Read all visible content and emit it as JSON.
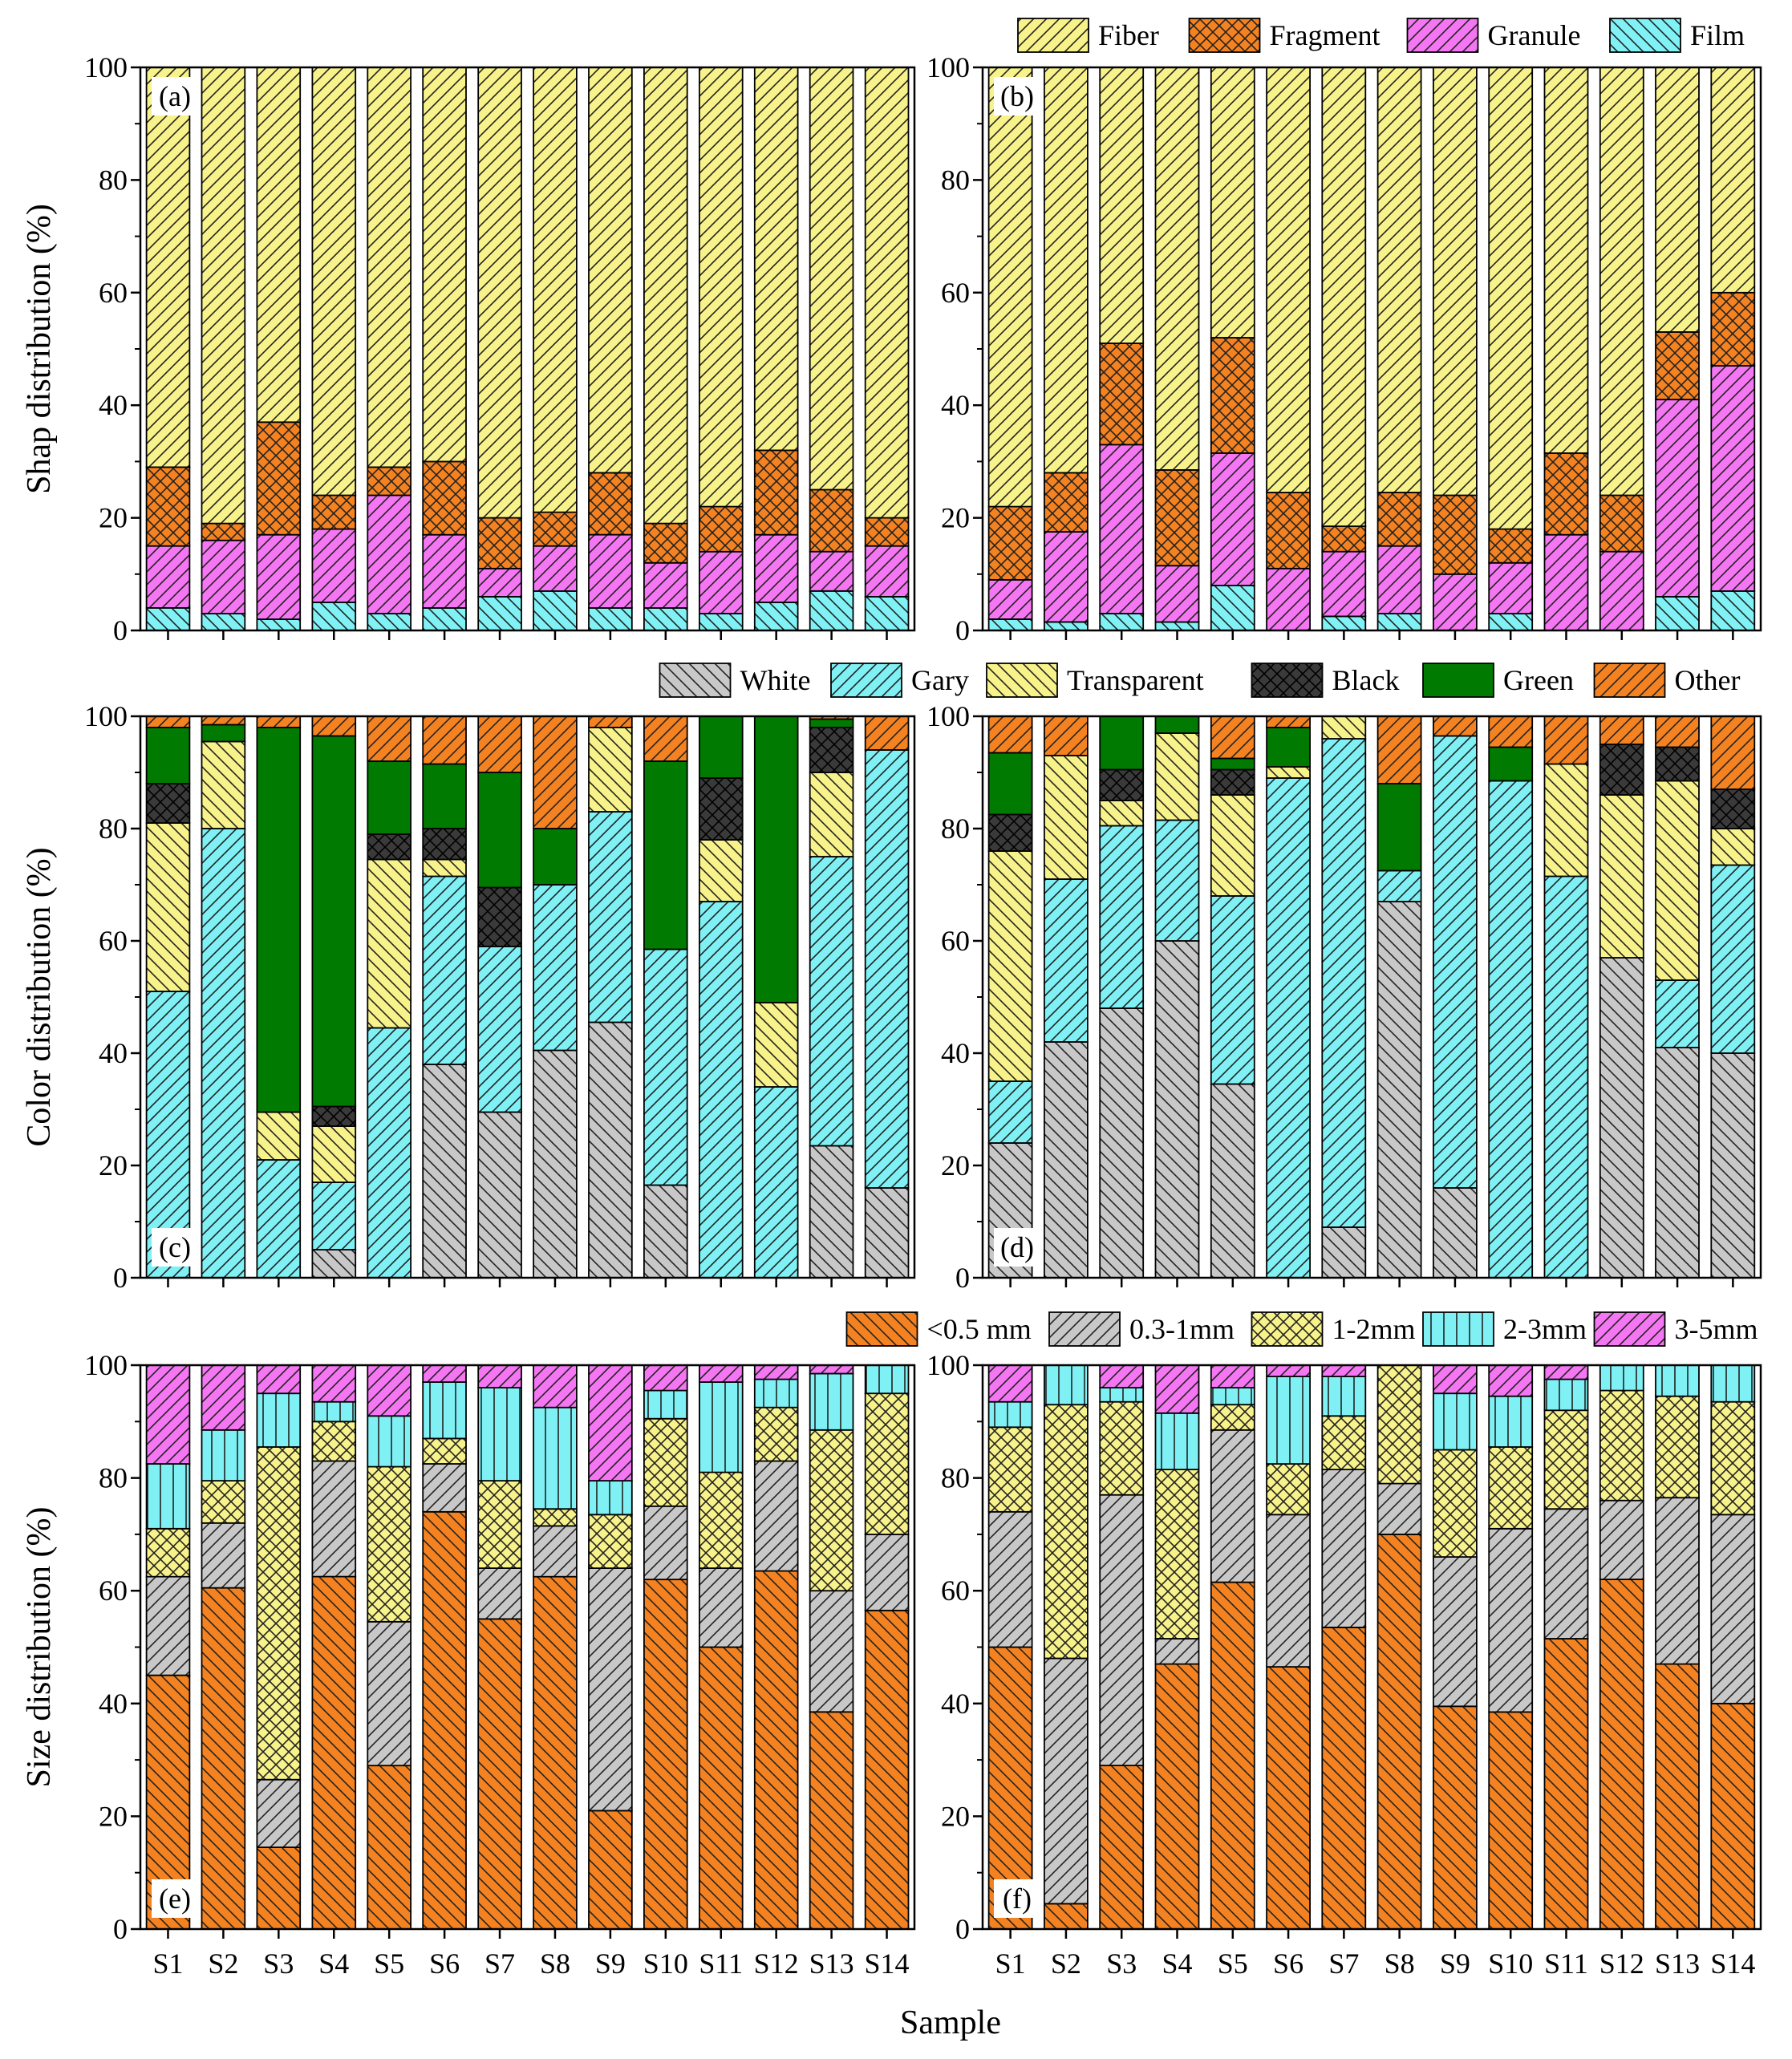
{
  "chart_data": [
    {
      "type": "bar",
      "panel": "(a)",
      "stacked": true,
      "ylabel": "Shap distribution (%)",
      "xlabel": "",
      "ylim": [
        0,
        100
      ],
      "yticks": [
        0,
        20,
        40,
        60,
        80,
        100
      ],
      "categories": [
        "S1",
        "S2",
        "S3",
        "S4",
        "S5",
        "S6",
        "S7",
        "S8",
        "S9",
        "S10",
        "S11",
        "S12",
        "S13",
        "S14"
      ],
      "series": [
        {
          "name": "Film",
          "key": "film",
          "values": [
            4,
            3,
            2,
            5,
            3,
            4,
            6,
            7,
            4,
            4,
            3,
            5,
            7,
            6
          ]
        },
        {
          "name": "Granule",
          "key": "granule",
          "values": [
            11,
            13,
            15,
            13,
            21,
            13,
            5,
            8,
            13,
            8,
            11,
            12,
            7,
            9
          ]
        },
        {
          "name": "Fragment",
          "key": "fragment",
          "values": [
            14,
            3,
            20,
            6,
            5,
            13,
            9,
            6,
            11,
            7,
            8,
            15,
            11,
            5
          ]
        },
        {
          "name": "Fiber",
          "key": "fiber",
          "values": [
            71,
            81,
            63,
            76,
            71,
            70,
            80,
            79,
            72,
            81,
            78,
            68,
            75,
            80
          ]
        }
      ]
    },
    {
      "type": "bar",
      "panel": "(b)",
      "stacked": true,
      "ylabel": "",
      "xlabel": "",
      "ylim": [
        0,
        100
      ],
      "yticks": [
        0,
        20,
        40,
        60,
        80,
        100
      ],
      "categories": [
        "S1",
        "S2",
        "S3",
        "S4",
        "S5",
        "S6",
        "S7",
        "S8",
        "S9",
        "S10",
        "S11",
        "S12",
        "S13",
        "S14"
      ],
      "series": [
        {
          "name": "Film",
          "key": "film",
          "values": [
            2,
            1.5,
            3,
            1.5,
            8,
            0,
            2.5,
            3,
            0,
            3,
            0,
            0,
            6,
            7
          ]
        },
        {
          "name": "Granule",
          "key": "granule",
          "values": [
            7,
            16,
            30,
            10,
            23.5,
            11,
            11.5,
            12,
            10,
            9,
            17,
            14,
            35,
            40
          ]
        },
        {
          "name": "Fragment",
          "key": "fragment",
          "values": [
            13,
            10.5,
            18,
            17,
            20.5,
            13.5,
            4.5,
            9.5,
            14,
            6,
            14.5,
            10,
            12,
            13
          ]
        },
        {
          "name": "Fiber",
          "key": "fiber",
          "values": [
            78,
            72,
            49,
            71.5,
            48,
            75.5,
            81.5,
            75.5,
            76,
            82,
            68.5,
            76,
            47,
            40
          ]
        }
      ]
    },
    {
      "type": "bar",
      "panel": "(c)",
      "stacked": true,
      "ylabel": "Color distribution (%)",
      "xlabel": "",
      "ylim": [
        0,
        100
      ],
      "yticks": [
        0,
        20,
        40,
        60,
        80,
        100
      ],
      "categories": [
        "S1",
        "S2",
        "S3",
        "S4",
        "S5",
        "S6",
        "S7",
        "S8",
        "S9",
        "S10",
        "S11",
        "S12",
        "S13",
        "S14"
      ],
      "series": [
        {
          "name": "White",
          "key": "white",
          "values": [
            0,
            0,
            0,
            5,
            0,
            38,
            29.5,
            40.5,
            45.5,
            16.5,
            0,
            0,
            23.5,
            16
          ]
        },
        {
          "name": "Gary",
          "key": "gary",
          "values": [
            51,
            80,
            21,
            12,
            44.5,
            33.5,
            29.5,
            29.5,
            37.5,
            42,
            67,
            34,
            51.5,
            78
          ]
        },
        {
          "name": "Transparent",
          "key": "transparent",
          "values": [
            30,
            15.5,
            8.5,
            10,
            30,
            3,
            0,
            0,
            15,
            0,
            11,
            15,
            15,
            0
          ]
        },
        {
          "name": "Black",
          "key": "black",
          "values": [
            7,
            0,
            0,
            3.5,
            4.5,
            5.5,
            10.5,
            0,
            0,
            0,
            11,
            0,
            8,
            0
          ]
        },
        {
          "name": "Green",
          "key": "green",
          "values": [
            10,
            3,
            68.5,
            66,
            13,
            11.5,
            20.5,
            10,
            0,
            33.5,
            11,
            51,
            1.5,
            0
          ]
        },
        {
          "name": "Other",
          "key": "other",
          "values": [
            2,
            1.5,
            2,
            3.5,
            8,
            8.5,
            10,
            20,
            2,
            8,
            0,
            0,
            0.5,
            6
          ]
        }
      ]
    },
    {
      "type": "bar",
      "panel": "(d)",
      "stacked": true,
      "ylabel": "",
      "xlabel": "",
      "ylim": [
        0,
        100
      ],
      "yticks": [
        0,
        20,
        40,
        60,
        80,
        100
      ],
      "categories": [
        "S1",
        "S2",
        "S3",
        "S4",
        "S5",
        "S6",
        "S7",
        "S8",
        "S9",
        "S10",
        "S11",
        "S12",
        "S13",
        "S14"
      ],
      "series": [
        {
          "name": "White",
          "key": "white",
          "values": [
            24,
            42,
            48,
            60,
            34.5,
            0,
            9,
            67,
            16,
            0,
            0,
            57,
            41,
            40
          ]
        },
        {
          "name": "Gary",
          "key": "gary",
          "values": [
            11,
            29,
            32.5,
            21.5,
            33.5,
            89,
            87,
            5.5,
            80.5,
            88.5,
            71.5,
            0,
            12,
            33.5
          ]
        },
        {
          "name": "Transparent",
          "key": "transparent",
          "values": [
            41,
            22,
            4.5,
            15.5,
            18,
            2,
            4,
            0,
            0,
            0,
            20,
            29,
            35.5,
            6.5
          ]
        },
        {
          "name": "Black",
          "key": "black",
          "values": [
            6.5,
            0,
            5.5,
            0,
            4.5,
            0,
            0,
            0,
            0,
            0,
            0,
            9,
            6,
            7
          ]
        },
        {
          "name": "Green",
          "key": "green",
          "values": [
            11,
            0,
            9.5,
            3,
            2,
            7,
            0,
            15.5,
            0,
            6,
            0,
            0,
            0,
            0
          ]
        },
        {
          "name": "Other",
          "key": "other",
          "values": [
            6.5,
            7,
            0,
            0,
            7.5,
            2,
            0,
            12,
            3.5,
            5.5,
            8.5,
            5,
            5.5,
            13
          ]
        }
      ]
    },
    {
      "type": "bar",
      "panel": "(e)",
      "stacked": true,
      "ylabel": "Size distribution (%)",
      "xlabel": "",
      "ylim": [
        0,
        100
      ],
      "yticks": [
        0,
        20,
        40,
        60,
        80,
        100
      ],
      "categories": [
        "S1",
        "S2",
        "S3",
        "S4",
        "S5",
        "S6",
        "S7",
        "S8",
        "S9",
        "S10",
        "S11",
        "S12",
        "S13",
        "S14"
      ],
      "series": [
        {
          "name": "<0.5 mm",
          "key": "lt05",
          "values": [
            45,
            60.5,
            14.5,
            62.5,
            29,
            74,
            55,
            62.5,
            21,
            62,
            50,
            63.5,
            38.5,
            56.5
          ]
        },
        {
          "name": "0.3-1mm",
          "key": "s031",
          "values": [
            17.5,
            11.5,
            12,
            20.5,
            25.5,
            8.5,
            9,
            9,
            43,
            13,
            14,
            19.5,
            21.5,
            13.5
          ]
        },
        {
          "name": "1-2mm",
          "key": "s12",
          "values": [
            8.5,
            7.5,
            59,
            7,
            27.5,
            4.5,
            15.5,
            3,
            9.5,
            15.5,
            17,
            9.5,
            28.5,
            25
          ]
        },
        {
          "name": "2-3mm",
          "key": "s23",
          "values": [
            11.5,
            9,
            9.5,
            3.5,
            9,
            10,
            16.5,
            18,
            6,
            5,
            16,
            5,
            10,
            5
          ]
        },
        {
          "name": "3-5mm",
          "key": "s35",
          "values": [
            17.5,
            11.5,
            5,
            6.5,
            9,
            3,
            4,
            7.5,
            20.5,
            4.5,
            3,
            2.5,
            1.5,
            0
          ]
        }
      ]
    },
    {
      "type": "bar",
      "panel": "(f)",
      "stacked": true,
      "ylabel": "",
      "xlabel": "Sample",
      "ylim": [
        0,
        100
      ],
      "yticks": [
        0,
        20,
        40,
        60,
        80,
        100
      ],
      "categories": [
        "S1",
        "S2",
        "S3",
        "S4",
        "S5",
        "S6",
        "S7",
        "S8",
        "S9",
        "S10",
        "S11",
        "S12",
        "S13",
        "S14"
      ],
      "series": [
        {
          "name": "<0.5 mm",
          "key": "lt05",
          "values": [
            50,
            4.5,
            29,
            47,
            61.5,
            46.5,
            53.5,
            70,
            39.5,
            38.5,
            51.5,
            62,
            47,
            40
          ]
        },
        {
          "name": "0.3-1mm",
          "key": "s031",
          "values": [
            24,
            43.5,
            48,
            4.5,
            27,
            27,
            28,
            9,
            26.5,
            32.5,
            23,
            14,
            29.5,
            33.5
          ]
        },
        {
          "name": "1-2mm",
          "key": "s12",
          "values": [
            15,
            45,
            16.5,
            30,
            4.5,
            9,
            9.5,
            21,
            19,
            14.5,
            17.5,
            19.5,
            18,
            20
          ]
        },
        {
          "name": "2-3mm",
          "key": "s23",
          "values": [
            4.5,
            7,
            2.5,
            10,
            3,
            15.5,
            7,
            0,
            10,
            9,
            5.5,
            4.5,
            5.5,
            6.5
          ]
        },
        {
          "name": "3-5mm",
          "key": "s35",
          "values": [
            6.5,
            0,
            4,
            8.5,
            4,
            2,
            2,
            0,
            5,
            5.5,
            2.5,
            0,
            0,
            0
          ]
        }
      ]
    }
  ],
  "legends": {
    "shape": [
      {
        "label": "Fiber",
        "key": "fiber"
      },
      {
        "label": "Fragment",
        "key": "fragment"
      },
      {
        "label": "Granule",
        "key": "granule"
      },
      {
        "label": "Film",
        "key": "film"
      }
    ],
    "color": [
      {
        "label": "White",
        "key": "white"
      },
      {
        "label": "Gary",
        "key": "gary"
      },
      {
        "label": "Transparent",
        "key": "transparent"
      },
      {
        "label": "Black",
        "key": "black"
      },
      {
        "label": "Green",
        "key": "green"
      },
      {
        "label": "Other",
        "key": "other"
      }
    ],
    "size": [
      {
        "label": "<0.5 mm",
        "key": "lt05"
      },
      {
        "label": "0.3-1mm",
        "key": "s031"
      },
      {
        "label": "1-2mm",
        "key": "s12"
      },
      {
        "label": "2-3mm",
        "key": "s23"
      },
      {
        "label": "3-5mm",
        "key": "s35"
      }
    ]
  },
  "styles": {
    "fiber": {
      "color": "#f7f28a",
      "pattern": "diag-right"
    },
    "fragment": {
      "color": "#f58220",
      "pattern": "cross"
    },
    "granule": {
      "color": "#f576f2",
      "pattern": "diag-right"
    },
    "film": {
      "color": "#80f2f6",
      "pattern": "diag-left"
    },
    "white": {
      "color": "#c8c8c8",
      "pattern": "diag-left"
    },
    "gary": {
      "color": "#7ff0f4",
      "pattern": "diag-right"
    },
    "transparent": {
      "color": "#f7f28a",
      "pattern": "diag-left"
    },
    "black": {
      "color": "#3a3a3a",
      "pattern": "cross"
    },
    "green": {
      "color": "#007a00",
      "pattern": "none"
    },
    "other": {
      "color": "#f58220",
      "pattern": "diag-right"
    },
    "lt05": {
      "color": "#f58220",
      "pattern": "diag-left"
    },
    "s031": {
      "color": "#c8c8c8",
      "pattern": "diag-right"
    },
    "s12": {
      "color": "#f7f28a",
      "pattern": "cross"
    },
    "s23": {
      "color": "#7ff0f4",
      "pattern": "vertical"
    },
    "s35": {
      "color": "#f576f2",
      "pattern": "diag-right"
    }
  }
}
